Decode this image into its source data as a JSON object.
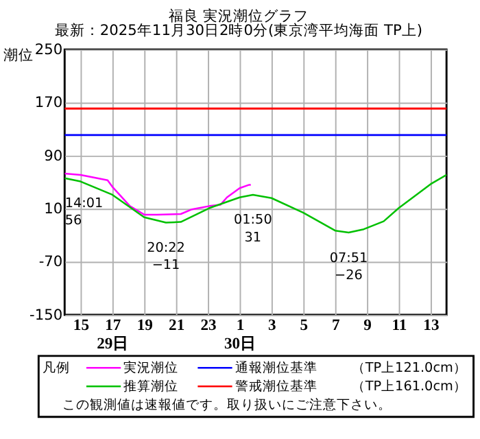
{
  "chart_data": {
    "type": "line",
    "title": "福良 実況潮位グラフ",
    "subtitle": "最新：2025年11月30日2時0分(東京湾平均海面 TP上)",
    "ylabel": "潮位",
    "legend_title": "凡例",
    "legend": "bottom",
    "grid": true,
    "line_style": "solid",
    "marker": "none",
    "xlim": [
      "2025-11-29T14:00",
      "2025-11-30T14:00"
    ],
    "ylim": [
      -150,
      250
    ],
    "xticks": [
      {
        "value": "2025-11-29T15:00",
        "label": "15"
      },
      {
        "value": "2025-11-29T17:00",
        "label": "17\n29日"
      },
      {
        "value": "2025-11-29T19:00",
        "label": "19"
      },
      {
        "value": "2025-11-29T21:00",
        "label": "21"
      },
      {
        "value": "2025-11-29T23:00",
        "label": "23"
      },
      {
        "value": "2025-11-30T01:00",
        "label": "1\n30日"
      },
      {
        "value": "2025-11-30T03:00",
        "label": "3"
      },
      {
        "value": "2025-11-30T05:00",
        "label": "5"
      },
      {
        "value": "2025-11-30T07:00",
        "label": "7"
      },
      {
        "value": "2025-11-30T09:00",
        "label": "9"
      },
      {
        "value": "2025-11-30T11:00",
        "label": "11"
      },
      {
        "value": "2025-11-30T13:00",
        "label": "13"
      }
    ],
    "yticks": [
      -150,
      -70,
      10,
      90,
      170,
      250
    ],
    "series": [
      {
        "name": "実況潮位",
        "color": "#ff00ff",
        "x": [
          "2025-11-29T14:00",
          "2025-11-29T15:00",
          "2025-11-29T16:42",
          "2025-11-29T17:00",
          "2025-11-29T18:06",
          "2025-11-29T19:00",
          "2025-11-29T19:48",
          "2025-11-29T21:18",
          "2025-11-29T22:00",
          "2025-11-29T23:06",
          "2025-11-29T23:48",
          "2025-11-30T00:12",
          "2025-11-30T01:00",
          "2025-11-30T01:36",
          "2025-11-30T01:42"
        ],
        "values": [
          63,
          61,
          53,
          43,
          14,
          1,
          1,
          2,
          9,
          14,
          16,
          27,
          41,
          46,
          46
        ]
      },
      {
        "name": "推算潮位",
        "color": "#00c000",
        "x": [
          "2025-11-29T14:00",
          "2025-11-29T15:00",
          "2025-11-29T17:00",
          "2025-11-29T19:00",
          "2025-11-29T20:22",
          "2025-11-29T21:18",
          "2025-11-29T23:06",
          "2025-11-30T01:00",
          "2025-11-30T01:50",
          "2025-11-30T03:00",
          "2025-11-30T05:00",
          "2025-11-30T07:00",
          "2025-11-30T07:51",
          "2025-11-30T08:48",
          "2025-11-30T10:03",
          "2025-11-30T11:00",
          "2025-11-30T13:00",
          "2025-11-30T14:00"
        ],
        "values": [
          56,
          51,
          31,
          -3,
          -11,
          -10,
          11,
          27,
          31,
          26,
          4,
          -23,
          -26,
          -21,
          -9,
          11,
          47,
          61
        ]
      }
    ],
    "ref_lines": [
      {
        "axis": "y",
        "value": 121,
        "label": "通報潮位基準",
        "color": "#0000ff"
      },
      {
        "axis": "y",
        "value": 161,
        "label": "警戒潮位基準",
        "color": "#ff0000"
      }
    ],
    "annotations": [
      {
        "text": "14:01\n56",
        "x": "2025-11-29T14:01",
        "y": 56
      },
      {
        "text": "20:22\n−11",
        "x": "2025-11-29T20:22",
        "y": -11
      },
      {
        "text": "01:50\n31",
        "x": "2025-11-30T01:50",
        "y": 31
      },
      {
        "text": "07:51\n−26",
        "x": "2025-11-30T07:51",
        "y": -26
      },
      "（TP上121.0cm）",
      "（TP上161.0cm）",
      "この観測値は速報値です。取り扱いにご注意下さい。"
    ]
  }
}
